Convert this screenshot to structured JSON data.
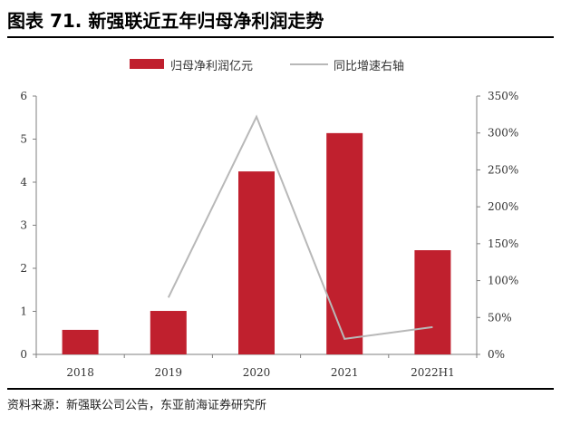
{
  "title": "图表 71. 新强联近五年归母净利润走势",
  "source": "资料来源：新强联公司公告，东亚前海证券研究所",
  "colors": {
    "bar": "#c0202e",
    "line": "#b8b8b8",
    "axis": "#7f7f7f"
  },
  "chart_data": {
    "type": "bar",
    "categories": [
      "2018",
      "2019",
      "2020",
      "2021",
      "2022H1"
    ],
    "series": [
      {
        "name": "归母净利润亿元",
        "type": "bar",
        "axis": "left",
        "values": [
          0.57,
          1.01,
          4.25,
          5.14,
          2.42
        ]
      },
      {
        "name": "同比增速右轴",
        "type": "line",
        "axis": "right",
        "values": [
          null,
          77,
          322,
          21,
          37
        ]
      }
    ],
    "ylim": [
      0,
      6
    ],
    "yticks": [
      "0",
      "1",
      "2",
      "3",
      "4",
      "5",
      "6"
    ],
    "y2lim": [
      0,
      350
    ],
    "y2ticks": [
      "0%",
      "50%",
      "100%",
      "150%",
      "200%",
      "250%",
      "300%",
      "350%"
    ],
    "legend": "top-center",
    "grid": false
  }
}
